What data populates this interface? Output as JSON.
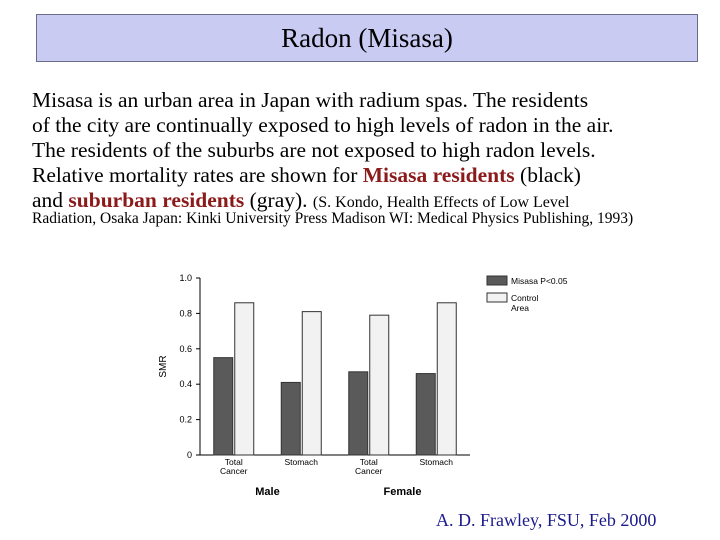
{
  "slide": {
    "title": "Radon (Misasa)",
    "body_lines": [
      "Misasa is an urban area in Japan with radium spas. The residents",
      "of the city are continually exposed to high levels of radon in the air.",
      "The residents of the suburbs are not exposed to high radon levels."
    ],
    "body_line4_pre": "Relative mortality rates are shown for ",
    "misasa_residents": "Misasa residents",
    "body_line4_post": " (black)",
    "body_line5_pre": "and ",
    "suburban_residents": "suburban residents",
    "body_line5_post": " (gray).",
    "citation_lead": "(S. Kondo, Health Effects of Low Level",
    "citation_rest": "Radiation, Osaka Japan: Kinki University Press Madison WI: Medical Physics Publishing, 1993)",
    "footer": "A. D. Frawley, FSU, Feb 2000",
    "colors": {
      "title_bg": "#c9cbf2",
      "highlight": "#8b1a1a",
      "footer": "#1a1a8c"
    }
  },
  "chart_data": {
    "type": "bar",
    "ylabel": "SMR",
    "ylim": [
      0,
      1.0
    ],
    "yticks": [
      "1.0",
      "0.8",
      "0.6",
      "0.4",
      "0.2",
      "0"
    ],
    "ytick_values": [
      1.0,
      0.8,
      0.6,
      0.4,
      0.2,
      0
    ],
    "categories": [
      [
        "Total",
        "Cancer"
      ],
      [
        "Stomach"
      ],
      [
        "Total",
        "Cancer"
      ],
      [
        "Stomach"
      ]
    ],
    "groups": [
      "Male",
      "Female"
    ],
    "series": [
      {
        "name": "Misasa P<0.05",
        "values": [
          0.55,
          0.41,
          0.47,
          0.46
        ],
        "color": "#5a5a5a"
      },
      {
        "name": "Control Area",
        "values": [
          0.86,
          0.81,
          0.79,
          0.86
        ],
        "color": "#f2f2f2"
      }
    ],
    "legend": [
      {
        "lines": [
          "Misasa P<0.05"
        ]
      },
      {
        "lines": [
          "Control",
          "Area"
        ]
      }
    ],
    "legend_position": "top-right",
    "grid": false
  }
}
